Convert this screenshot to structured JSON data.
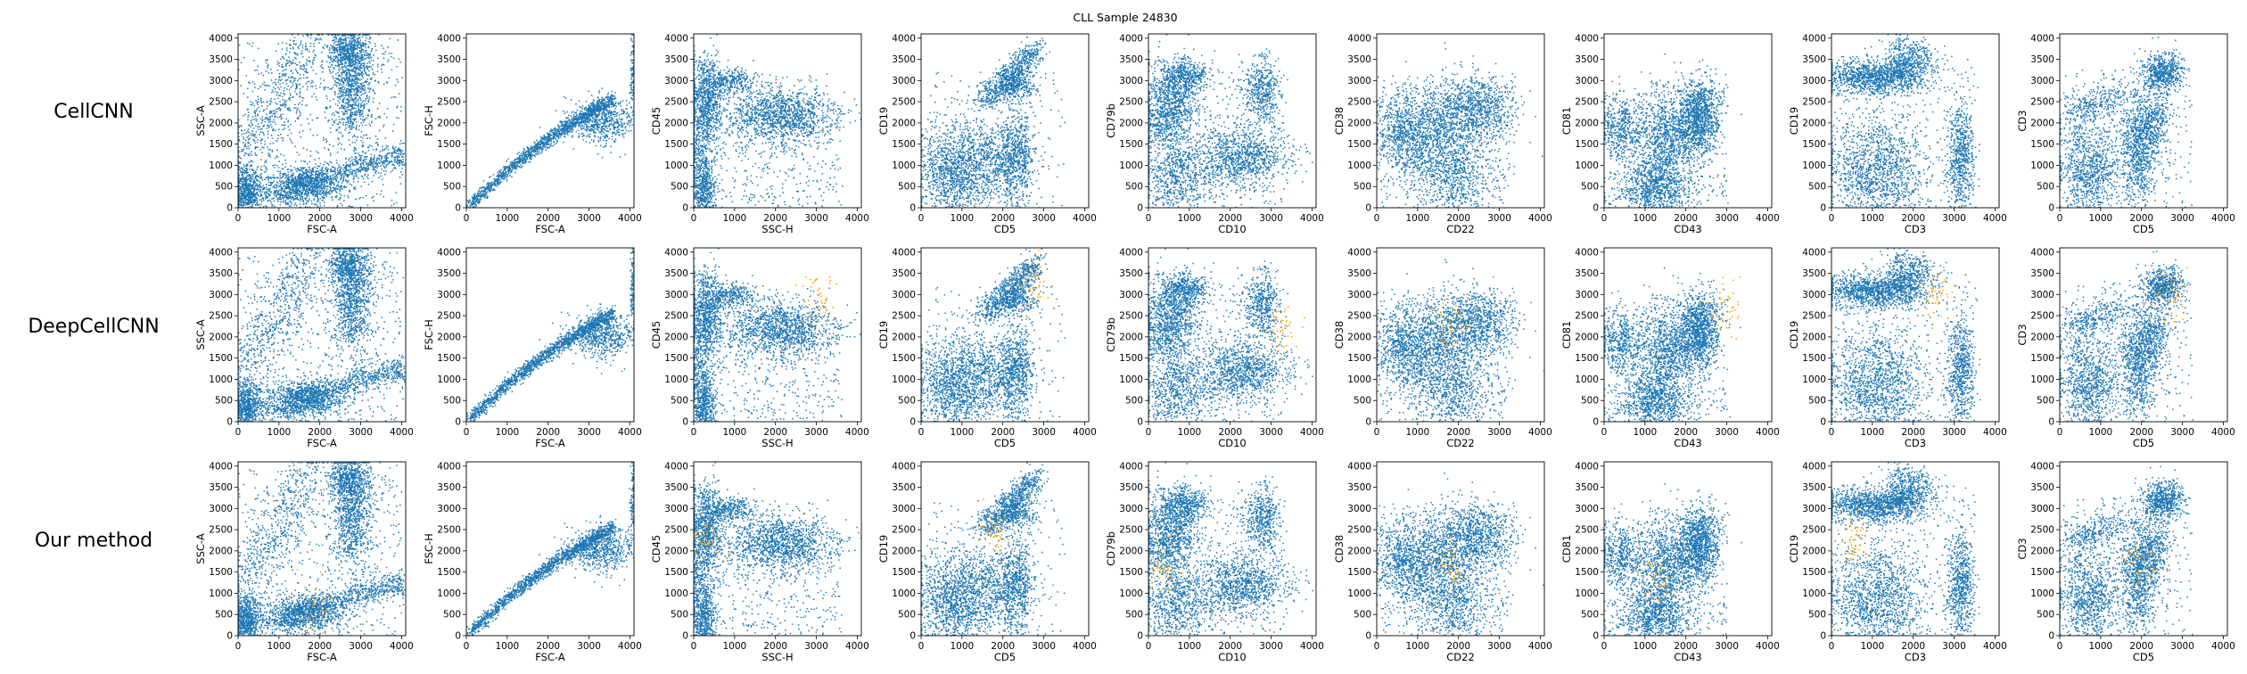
{
  "figure": {
    "title": "CLL Sample 24830"
  },
  "chart_data": {
    "type": "scatter",
    "title": "CLL Sample 24830",
    "rows": [
      "CellCNN",
      "DeepCellCNN",
      "Our method"
    ],
    "colors": {
      "cells": "#1f77b4",
      "highlighted": "#ffa500"
    },
    "panels": [
      {
        "xlabel": "FSC-A",
        "ylabel": "SSC-A",
        "xlim": [
          0,
          4100
        ],
        "ylim": [
          0,
          4100
        ],
        "xticks": [
          0,
          1000,
          2000,
          3000,
          4000
        ],
        "yticks": [
          0,
          500,
          1000,
          1500,
          2000,
          2500,
          3000,
          3500,
          4000
        ],
        "highlight_centers": [
          [],
          [],
          [
            [
              1900,
              550
            ]
          ]
        ]
      },
      {
        "xlabel": "FSC-A",
        "ylabel": "FSC-H",
        "xlim": [
          0,
          4100
        ],
        "ylim": [
          0,
          4100
        ],
        "xticks": [
          0,
          1000,
          2000,
          3000,
          4000
        ],
        "yticks": [
          0,
          500,
          1000,
          1500,
          2000,
          2500,
          3000,
          3500,
          4000
        ],
        "highlight_centers": [
          [],
          [],
          []
        ]
      },
      {
        "xlabel": "SSC-H",
        "ylabel": "CD45",
        "xlim": [
          0,
          4100
        ],
        "ylim": [
          0,
          4100
        ],
        "xticks": [
          0,
          1000,
          2000,
          3000,
          4000
        ],
        "yticks": [
          0,
          500,
          1000,
          1500,
          2000,
          2500,
          3000,
          3500,
          4000
        ],
        "highlight_centers": [
          [],
          [
            [
              3100,
              2900
            ]
          ],
          [
            [
              200,
              2300
            ]
          ]
        ]
      },
      {
        "xlabel": "CD5",
        "ylabel": "CD19",
        "xlim": [
          0,
          4100
        ],
        "ylim": [
          0,
          4100
        ],
        "xticks": [
          0,
          1000,
          2000,
          3000,
          4000
        ],
        "yticks": [
          0,
          500,
          1000,
          1500,
          2000,
          2500,
          3000,
          3500,
          4000
        ],
        "highlight_centers": [
          [],
          [
            [
              2700,
              3200
            ]
          ],
          [
            [
              1800,
              2400
            ]
          ]
        ]
      },
      {
        "xlabel": "CD10",
        "ylabel": "CD79b",
        "xlim": [
          0,
          4100
        ],
        "ylim": [
          0,
          4100
        ],
        "xticks": [
          0,
          1000,
          2000,
          3000,
          4000
        ],
        "yticks": [
          0,
          500,
          1000,
          1500,
          2000,
          2500,
          3000,
          3500,
          4000
        ],
        "highlight_centers": [
          [],
          [
            [
              3300,
              2200
            ]
          ],
          [
            [
              400,
              1600
            ]
          ]
        ]
      },
      {
        "xlabel": "CD22",
        "ylabel": "CD38",
        "xlim": [
          0,
          4100
        ],
        "ylim": [
          0,
          4100
        ],
        "xticks": [
          0,
          1000,
          2000,
          3000,
          4000
        ],
        "yticks": [
          0,
          500,
          1000,
          1500,
          2000,
          2500,
          3000,
          3500,
          4000
        ],
        "highlight_centers": [
          [],
          [
            [
              1800,
              2300
            ]
          ],
          [
            [
              1800,
              1600
            ]
          ]
        ]
      },
      {
        "xlabel": "CD43",
        "ylabel": "CD81",
        "xlim": [
          0,
          4100
        ],
        "ylim": [
          0,
          4100
        ],
        "xticks": [
          0,
          1000,
          2000,
          3000,
          4000
        ],
        "yticks": [
          0,
          500,
          1000,
          1500,
          2000,
          2500,
          3000,
          3500,
          4000
        ],
        "highlight_centers": [
          [],
          [
            [
              2900,
              2700
            ]
          ],
          [
            [
              1300,
              1300
            ]
          ]
        ]
      },
      {
        "xlabel": "CD3",
        "ylabel": "CD19",
        "xlim": [
          0,
          4100
        ],
        "ylim": [
          0,
          4100
        ],
        "xticks": [
          0,
          1000,
          2000,
          3000,
          4000
        ],
        "yticks": [
          0,
          500,
          1000,
          1500,
          2000,
          2500,
          3000,
          3500,
          4000
        ],
        "highlight_centers": [
          [],
          [
            [
              2500,
              3100
            ]
          ],
          [
            [
              500,
              2300
            ]
          ]
        ]
      },
      {
        "xlabel": "CD5",
        "ylabel": "CD3",
        "xlim": [
          0,
          4100
        ],
        "ylim": [
          0,
          4100
        ],
        "xticks": [
          0,
          1000,
          2000,
          3000,
          4000
        ],
        "yticks": [
          0,
          500,
          1000,
          1500,
          2000,
          2500,
          3000,
          3500,
          4000
        ],
        "highlight_centers": [
          [],
          [
            [
              2600,
              3000
            ]
          ],
          [
            [
              2000,
              1500
            ]
          ]
        ]
      }
    ]
  }
}
